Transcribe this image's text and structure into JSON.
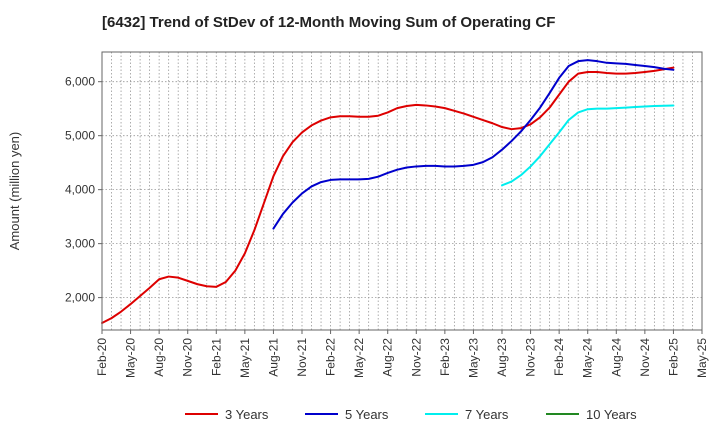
{
  "chart_data": {
    "type": "line",
    "title": "[6432]  Trend of StDev of 12-Month Moving Sum of Operating CF",
    "xlabel": "",
    "ylabel": "Amount (million yen)",
    "ylim": [
      1400,
      6550
    ],
    "yticks": [
      2000,
      3000,
      4000,
      5000,
      6000
    ],
    "ytick_labels": [
      "2,000",
      "3,000",
      "4,000",
      "5,000",
      "6,000"
    ],
    "x_range": [
      "Feb-20",
      "May-25"
    ],
    "xtick_labels": [
      "Feb-20",
      "May-20",
      "Aug-20",
      "Nov-20",
      "Feb-21",
      "May-21",
      "Aug-21",
      "Nov-21",
      "Feb-22",
      "May-22",
      "Aug-22",
      "Nov-22",
      "Feb-23",
      "May-23",
      "Aug-23",
      "Nov-23",
      "Feb-24",
      "May-24",
      "Aug-24",
      "Nov-24",
      "Feb-25",
      "May-25"
    ],
    "grid": true,
    "legend_position": "bottom",
    "series": [
      {
        "name": "3 Years",
        "color": "#dd0000",
        "x": [
          "Feb-20",
          "Mar-20",
          "Apr-20",
          "May-20",
          "Jun-20",
          "Jul-20",
          "Aug-20",
          "Sep-20",
          "Oct-20",
          "Nov-20",
          "Dec-20",
          "Jan-21",
          "Feb-21",
          "Mar-21",
          "Apr-21",
          "May-21",
          "Jun-21",
          "Jul-21",
          "Aug-21",
          "Sep-21",
          "Oct-21",
          "Nov-21",
          "Dec-21",
          "Jan-22",
          "Feb-22",
          "Mar-22",
          "Apr-22",
          "May-22",
          "Jun-22",
          "Jul-22",
          "Aug-22",
          "Sep-22",
          "Oct-22",
          "Nov-22",
          "Dec-22",
          "Jan-23",
          "Feb-23",
          "Mar-23",
          "Apr-23",
          "May-23",
          "Jun-23",
          "Jul-23",
          "Aug-23",
          "Sep-23",
          "Oct-23",
          "Nov-23",
          "Dec-23",
          "Jan-24",
          "Feb-24",
          "Mar-24",
          "Apr-24",
          "May-24",
          "Jun-24",
          "Jul-24",
          "Aug-24",
          "Sep-24",
          "Oct-24",
          "Nov-24",
          "Dec-24",
          "Jan-25",
          "Feb-25"
        ],
        "values": [
          1530,
          1620,
          1740,
          1880,
          2030,
          2180,
          2340,
          2390,
          2370,
          2310,
          2250,
          2210,
          2200,
          2290,
          2500,
          2820,
          3250,
          3750,
          4250,
          4620,
          4880,
          5060,
          5190,
          5280,
          5340,
          5360,
          5360,
          5350,
          5350,
          5370,
          5430,
          5510,
          5550,
          5570,
          5560,
          5540,
          5510,
          5460,
          5410,
          5350,
          5290,
          5230,
          5160,
          5120,
          5140,
          5210,
          5340,
          5520,
          5760,
          6000,
          6150,
          6180,
          6180,
          6160,
          6150,
          6150,
          6160,
          6180,
          6200,
          6230,
          6260
        ]
      },
      {
        "name": "5 Years",
        "color": "#0000cc",
        "x": [
          "Aug-21",
          "Sep-21",
          "Oct-21",
          "Nov-21",
          "Dec-21",
          "Jan-22",
          "Feb-22",
          "Mar-22",
          "Apr-22",
          "May-22",
          "Jun-22",
          "Jul-22",
          "Aug-22",
          "Sep-22",
          "Oct-22",
          "Nov-22",
          "Dec-22",
          "Jan-23",
          "Feb-23",
          "Mar-23",
          "Apr-23",
          "May-23",
          "Jun-23",
          "Jul-23",
          "Aug-23",
          "Sep-23",
          "Oct-23",
          "Nov-23",
          "Dec-23",
          "Jan-24",
          "Feb-24",
          "Mar-24",
          "Apr-24",
          "May-24",
          "Jun-24",
          "Jul-24",
          "Aug-24",
          "Sep-24",
          "Oct-24",
          "Nov-24",
          "Dec-24",
          "Jan-25",
          "Feb-25"
        ],
        "values": [
          3280,
          3550,
          3760,
          3930,
          4060,
          4140,
          4180,
          4190,
          4190,
          4190,
          4200,
          4240,
          4310,
          4370,
          4410,
          4430,
          4440,
          4440,
          4430,
          4430,
          4440,
          4460,
          4510,
          4600,
          4740,
          4900,
          5080,
          5290,
          5520,
          5790,
          6070,
          6290,
          6380,
          6400,
          6380,
          6350,
          6340,
          6330,
          6310,
          6290,
          6270,
          6240,
          6220
        ]
      },
      {
        "name": "7 Years",
        "color": "#00eeee",
        "x": [
          "Aug-23",
          "Sep-23",
          "Oct-23",
          "Nov-23",
          "Dec-23",
          "Jan-24",
          "Feb-24",
          "Mar-24",
          "Apr-24",
          "May-24",
          "Jun-24",
          "Jul-24",
          "Aug-24",
          "Sep-24",
          "Oct-24",
          "Nov-24",
          "Dec-24",
          "Jan-25",
          "Feb-25"
        ],
        "values": [
          4080,
          4150,
          4270,
          4430,
          4620,
          4840,
          5060,
          5290,
          5430,
          5490,
          5500,
          5500,
          5510,
          5520,
          5530,
          5540,
          5550,
          5555,
          5560
        ]
      },
      {
        "name": "10 Years",
        "color": "#228822",
        "x": [],
        "values": []
      }
    ]
  }
}
